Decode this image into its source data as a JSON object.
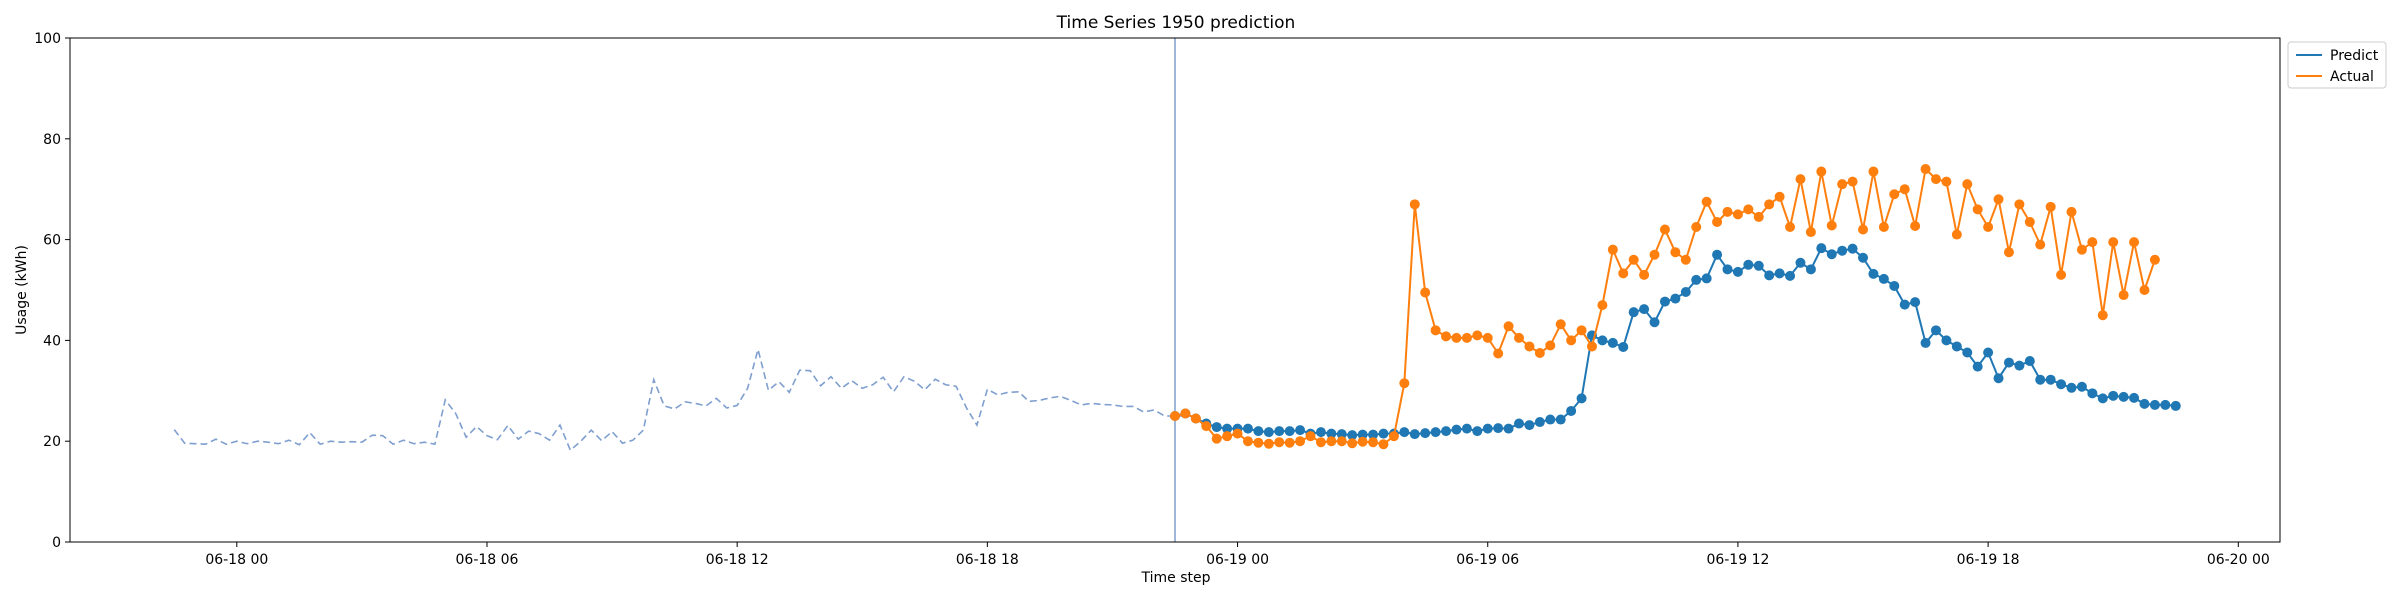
{
  "chart_data": {
    "type": "line",
    "title": "Time Series 1950 prediction",
    "xlabel": "Time step",
    "ylabel": "Usage (kWh)",
    "ylim": [
      0,
      100
    ],
    "xlim": [
      "2023-06-17 20:00",
      "2023-06-20 01:00"
    ],
    "yticks": [
      0,
      20,
      40,
      60,
      80,
      100
    ],
    "xticks": [
      {
        "value": "2023-06-18 00:00",
        "label": "06-18 00"
      },
      {
        "value": "2023-06-18 06:00",
        "label": "06-18 06"
      },
      {
        "value": "2023-06-18 12:00",
        "label": "06-18 12"
      },
      {
        "value": "2023-06-18 18:00",
        "label": "06-18 18"
      },
      {
        "value": "2023-06-19 00:00",
        "label": "06-19 00"
      },
      {
        "value": "2023-06-19 06:00",
        "label": "06-19 06"
      },
      {
        "value": "2023-06-19 12:00",
        "label": "06-19 12"
      },
      {
        "value": "2023-06-19 18:00",
        "label": "06-19 18"
      },
      {
        "value": "2023-06-20 00:00",
        "label": "06-20 00"
      }
    ],
    "legend_position": "top-right, outside plot",
    "grid": false,
    "forecast_start": "2023-06-18 22:30",
    "history": {
      "start": "2023-06-17 22:30",
      "interval_minutes": 15,
      "color": "#7f9fcf",
      "style": "dashed",
      "values": [
        22.3,
        19.6,
        19.5,
        19.4,
        20.4,
        19.4,
        20.0,
        19.5,
        20.0,
        19.8,
        19.5,
        20.2,
        19.3,
        21.7,
        19.4,
        20.0,
        19.8,
        19.9,
        19.8,
        21.2,
        21.1,
        19.4,
        20.2,
        19.5,
        19.8,
        19.4,
        28.2,
        25.5,
        20.8,
        22.9,
        21.1,
        20.3,
        23.1,
        20.4,
        22.0,
        21.5,
        20.2,
        23.2,
        18.2,
        20.0,
        22.2,
        20.1,
        21.9,
        19.6,
        20.2,
        22.2,
        32.2,
        27.0,
        26.4,
        27.8,
        27.5,
        27.0,
        28.5,
        26.6,
        27.1,
        30.5,
        38.2,
        30.1,
        31.8,
        29.7,
        34.1,
        34.0,
        31.0,
        32.8,
        30.5,
        32.0,
        30.5,
        31.2,
        32.7,
        29.8,
        32.8,
        31.9,
        30.2,
        32.3,
        31.2,
        30.9,
        26.6,
        23.2,
        30.3,
        29.2,
        29.7,
        29.8,
        27.9,
        28.1,
        28.6,
        28.9,
        28.1,
        27.2,
        27.5,
        27.3,
        27.2,
        26.9,
        26.9,
        25.8,
        26.2,
        25.0,
        25.0,
        25.0
      ]
    },
    "series": [
      {
        "name": "Predict",
        "color": "#1f77b4",
        "start": "2023-06-18 22:30",
        "interval_minutes": 15,
        "values": [
          25.0,
          25.5,
          24.5,
          23.5,
          22.8,
          22.5,
          22.5,
          22.5,
          22.0,
          21.8,
          22.0,
          22.0,
          22.2,
          21.5,
          21.8,
          21.5,
          21.4,
          21.2,
          21.3,
          21.3,
          21.5,
          21.5,
          21.8,
          21.4,
          21.6,
          21.8,
          22.0,
          22.3,
          22.5,
          22.0,
          22.5,
          22.6,
          22.5,
          23.5,
          23.2,
          23.8,
          24.3,
          24.3,
          26.0,
          28.5,
          41.0,
          40.0,
          39.5,
          38.7,
          45.6,
          46.2,
          43.6,
          47.7,
          48.3,
          49.6,
          52.0,
          52.3,
          57.0,
          54.1,
          53.6,
          55.0,
          54.8,
          52.9,
          53.3,
          52.8,
          55.4,
          54.1,
          58.3,
          57.1,
          57.8,
          58.2,
          56.4,
          53.2,
          52.2,
          50.8,
          47.1,
          47.6,
          39.5,
          42.0,
          40.0,
          38.8,
          37.6,
          34.8,
          37.6,
          32.5,
          35.6,
          35.0,
          35.9,
          32.2,
          32.2,
          31.3,
          30.6,
          30.8,
          29.5,
          28.5,
          29.0,
          28.8,
          28.6,
          27.4,
          27.2,
          27.2,
          27.0
        ]
      },
      {
        "name": "Actual",
        "color": "#ff7f0e",
        "start": "2023-06-18 22:30",
        "interval_minutes": 15,
        "values": [
          25.0,
          25.5,
          24.5,
          23.0,
          20.5,
          21.0,
          21.5,
          20.0,
          19.7,
          19.5,
          19.8,
          19.7,
          20.0,
          21.0,
          19.8,
          20.0,
          20.0,
          19.6,
          19.9,
          19.8,
          19.4,
          21.0,
          31.5,
          67.0,
          49.5,
          42.0,
          40.8,
          40.5,
          40.5,
          41.0,
          40.5,
          37.4,
          42.8,
          40.5,
          38.8,
          37.5,
          39.0,
          43.2,
          40.0,
          42.0,
          38.8,
          47.0,
          58.0,
          53.3,
          56.0,
          53.0,
          57.0,
          62.0,
          57.5,
          56.0,
          62.5,
          67.5,
          63.5,
          65.5,
          65.0,
          66.0,
          64.5,
          67.0,
          68.5,
          62.5,
          72.0,
          61.5,
          73.5,
          62.8,
          71.0,
          71.5,
          62.0,
          73.5,
          62.5,
          69.0,
          70.0,
          62.7,
          74.0,
          72.0,
          71.5,
          61.0,
          71.0,
          66.0,
          62.5,
          68.0,
          57.5,
          67.0,
          63.5,
          59.0,
          66.5,
          53.0,
          65.5,
          58.0,
          59.5,
          45.0,
          59.5,
          49.0,
          59.5,
          50.0,
          56.0
        ]
      }
    ]
  }
}
